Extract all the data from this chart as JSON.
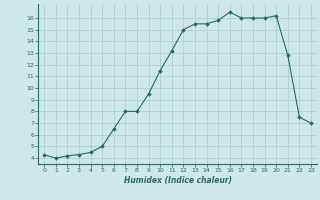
{
  "x": [
    0,
    1,
    2,
    3,
    4,
    5,
    6,
    7,
    8,
    9,
    10,
    11,
    12,
    13,
    14,
    15,
    16,
    17,
    18,
    19,
    20,
    21,
    22,
    23
  ],
  "y": [
    4.3,
    4.0,
    4.2,
    4.3,
    4.5,
    5.0,
    6.5,
    8.0,
    8.0,
    9.5,
    11.5,
    13.2,
    15.0,
    15.5,
    15.5,
    15.8,
    16.5,
    16.0,
    16.0,
    16.0,
    16.2,
    12.8,
    7.5,
    7.0
  ],
  "xlim": [
    -0.5,
    23.5
  ],
  "ylim": [
    3.5,
    17.2
  ],
  "yticks": [
    4,
    5,
    6,
    7,
    8,
    9,
    10,
    11,
    12,
    13,
    14,
    15,
    16
  ],
  "xticks": [
    0,
    1,
    2,
    3,
    4,
    5,
    6,
    7,
    8,
    9,
    10,
    11,
    12,
    13,
    14,
    15,
    16,
    17,
    18,
    19,
    20,
    21,
    22,
    23
  ],
  "xlabel": "Humidex (Indice chaleur)",
  "line_color": "#2e6b5e",
  "marker": "D",
  "marker_size": 1.8,
  "bg_color": "#cce8e8",
  "grid_color": "#aacccc",
  "title": ""
}
